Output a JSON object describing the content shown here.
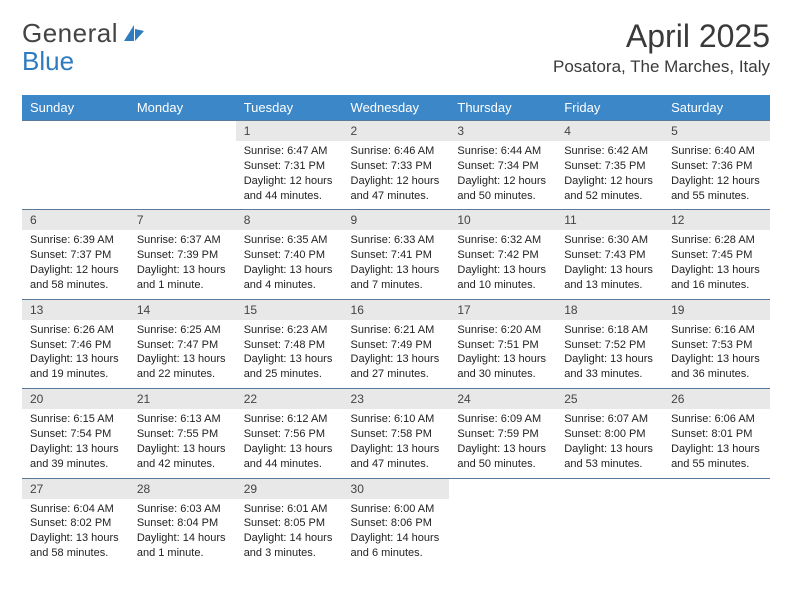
{
  "brand": {
    "part1": "General",
    "part2": "Blue"
  },
  "title": "April 2025",
  "location": "Posatora, The Marches, Italy",
  "colors": {
    "header_bg": "#3b87c8",
    "header_text": "#ffffff",
    "daynum_bg": "#e8e8e8",
    "cell_border": "#5a7a99",
    "text": "#222222",
    "logo_gray": "#444444",
    "logo_blue": "#2f7bbf",
    "page_bg": "#ffffff"
  },
  "typography": {
    "title_fontsize": 32,
    "location_fontsize": 17,
    "dayheader_fontsize": 13,
    "daynum_fontsize": 12,
    "detail_fontsize": 11,
    "font_family": "Arial"
  },
  "layout": {
    "columns": 7,
    "rows": 5
  },
  "day_headers": [
    "Sunday",
    "Monday",
    "Tuesday",
    "Wednesday",
    "Thursday",
    "Friday",
    "Saturday"
  ],
  "weeks": [
    [
      null,
      null,
      {
        "num": "1",
        "sunrise": "6:47 AM",
        "sunset": "7:31 PM",
        "daylight": "12 hours and 44 minutes."
      },
      {
        "num": "2",
        "sunrise": "6:46 AM",
        "sunset": "7:33 PM",
        "daylight": "12 hours and 47 minutes."
      },
      {
        "num": "3",
        "sunrise": "6:44 AM",
        "sunset": "7:34 PM",
        "daylight": "12 hours and 50 minutes."
      },
      {
        "num": "4",
        "sunrise": "6:42 AM",
        "sunset": "7:35 PM",
        "daylight": "12 hours and 52 minutes."
      },
      {
        "num": "5",
        "sunrise": "6:40 AM",
        "sunset": "7:36 PM",
        "daylight": "12 hours and 55 minutes."
      }
    ],
    [
      {
        "num": "6",
        "sunrise": "6:39 AM",
        "sunset": "7:37 PM",
        "daylight": "12 hours and 58 minutes."
      },
      {
        "num": "7",
        "sunrise": "6:37 AM",
        "sunset": "7:39 PM",
        "daylight": "13 hours and 1 minute."
      },
      {
        "num": "8",
        "sunrise": "6:35 AM",
        "sunset": "7:40 PM",
        "daylight": "13 hours and 4 minutes."
      },
      {
        "num": "9",
        "sunrise": "6:33 AM",
        "sunset": "7:41 PM",
        "daylight": "13 hours and 7 minutes."
      },
      {
        "num": "10",
        "sunrise": "6:32 AM",
        "sunset": "7:42 PM",
        "daylight": "13 hours and 10 minutes."
      },
      {
        "num": "11",
        "sunrise": "6:30 AM",
        "sunset": "7:43 PM",
        "daylight": "13 hours and 13 minutes."
      },
      {
        "num": "12",
        "sunrise": "6:28 AM",
        "sunset": "7:45 PM",
        "daylight": "13 hours and 16 minutes."
      }
    ],
    [
      {
        "num": "13",
        "sunrise": "6:26 AM",
        "sunset": "7:46 PM",
        "daylight": "13 hours and 19 minutes."
      },
      {
        "num": "14",
        "sunrise": "6:25 AM",
        "sunset": "7:47 PM",
        "daylight": "13 hours and 22 minutes."
      },
      {
        "num": "15",
        "sunrise": "6:23 AM",
        "sunset": "7:48 PM",
        "daylight": "13 hours and 25 minutes."
      },
      {
        "num": "16",
        "sunrise": "6:21 AM",
        "sunset": "7:49 PM",
        "daylight": "13 hours and 27 minutes."
      },
      {
        "num": "17",
        "sunrise": "6:20 AM",
        "sunset": "7:51 PM",
        "daylight": "13 hours and 30 minutes."
      },
      {
        "num": "18",
        "sunrise": "6:18 AM",
        "sunset": "7:52 PM",
        "daylight": "13 hours and 33 minutes."
      },
      {
        "num": "19",
        "sunrise": "6:16 AM",
        "sunset": "7:53 PM",
        "daylight": "13 hours and 36 minutes."
      }
    ],
    [
      {
        "num": "20",
        "sunrise": "6:15 AM",
        "sunset": "7:54 PM",
        "daylight": "13 hours and 39 minutes."
      },
      {
        "num": "21",
        "sunrise": "6:13 AM",
        "sunset": "7:55 PM",
        "daylight": "13 hours and 42 minutes."
      },
      {
        "num": "22",
        "sunrise": "6:12 AM",
        "sunset": "7:56 PM",
        "daylight": "13 hours and 44 minutes."
      },
      {
        "num": "23",
        "sunrise": "6:10 AM",
        "sunset": "7:58 PM",
        "daylight": "13 hours and 47 minutes."
      },
      {
        "num": "24",
        "sunrise": "6:09 AM",
        "sunset": "7:59 PM",
        "daylight": "13 hours and 50 minutes."
      },
      {
        "num": "25",
        "sunrise": "6:07 AM",
        "sunset": "8:00 PM",
        "daylight": "13 hours and 53 minutes."
      },
      {
        "num": "26",
        "sunrise": "6:06 AM",
        "sunset": "8:01 PM",
        "daylight": "13 hours and 55 minutes."
      }
    ],
    [
      {
        "num": "27",
        "sunrise": "6:04 AM",
        "sunset": "8:02 PM",
        "daylight": "13 hours and 58 minutes."
      },
      {
        "num": "28",
        "sunrise": "6:03 AM",
        "sunset": "8:04 PM",
        "daylight": "14 hours and 1 minute."
      },
      {
        "num": "29",
        "sunrise": "6:01 AM",
        "sunset": "8:05 PM",
        "daylight": "14 hours and 3 minutes."
      },
      {
        "num": "30",
        "sunrise": "6:00 AM",
        "sunset": "8:06 PM",
        "daylight": "14 hours and 6 minutes."
      },
      null,
      null,
      null
    ]
  ],
  "labels": {
    "sunrise": "Sunrise:",
    "sunset": "Sunset:",
    "daylight": "Daylight:"
  }
}
